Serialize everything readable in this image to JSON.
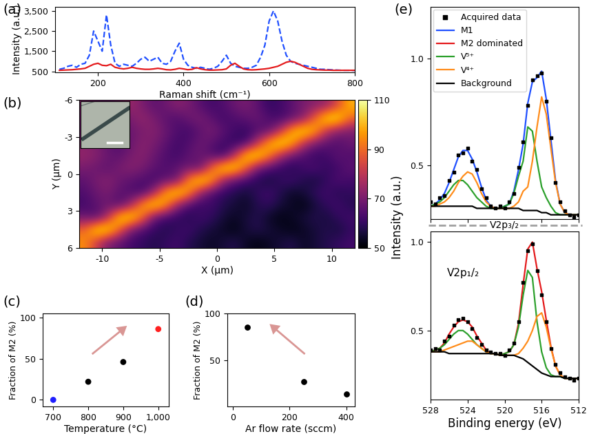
{
  "chart_data": [
    {
      "type": "line",
      "title": "(a)",
      "xlabel": "Raman shift (cm⁻¹)",
      "ylabel": "Intensity (a.u.)",
      "xlim": [
        100,
        800
      ],
      "xticks": [
        200,
        400,
        600,
        800
      ],
      "ylim": [
        450,
        3700
      ],
      "yticks": [
        500,
        {
          "value": 1500,
          "label": "1,500"
        },
        {
          "value": 2500,
          "label": "2,500"
        },
        {
          "value": 3500,
          "label": "3,500"
        }
      ],
      "x": [
        110,
        120,
        130,
        140,
        150,
        160,
        170,
        180,
        190,
        200,
        210,
        220,
        230,
        240,
        250,
        260,
        270,
        280,
        290,
        300,
        310,
        320,
        330,
        340,
        350,
        360,
        370,
        380,
        390,
        400,
        410,
        420,
        430,
        440,
        450,
        460,
        470,
        480,
        490,
        500,
        510,
        520,
        530,
        540,
        550,
        560,
        570,
        580,
        590,
        600,
        610,
        620,
        630,
        640,
        650,
        660,
        670,
        680,
        690,
        700,
        710,
        720,
        730,
        740,
        750,
        760,
        770,
        780,
        790,
        800
      ],
      "series": [
        {
          "color": "#1f4fff",
          "line_style": "dashed",
          "values": [
            600,
            650,
            750,
            800,
            700,
            850,
            900,
            1300,
            2500,
            2000,
            1500,
            3300,
            1800,
            900,
            750,
            850,
            800,
            750,
            900,
            1100,
            1200,
            1000,
            1100,
            1200,
            900,
            850,
            1000,
            1500,
            1900,
            1100,
            800,
            700,
            650,
            700,
            650,
            600,
            650,
            750,
            1000,
            1300,
            900,
            750,
            700,
            650,
            650,
            700,
            800,
            1200,
            1800,
            3000,
            3500,
            3000,
            2000,
            1300,
            1000,
            900,
            850,
            800,
            750,
            700,
            650,
            600,
            600,
            580,
            570,
            560,
            550,
            550,
            550,
            540
          ]
        },
        {
          "color": "#e41a1c",
          "line_style": "solid",
          "values": [
            550,
            560,
            570,
            580,
            600,
            620,
            650,
            750,
            850,
            900,
            800,
            780,
            850,
            700,
            650,
            620,
            650,
            700,
            650,
            620,
            600,
            600,
            620,
            650,
            620,
            580,
            570,
            600,
            650,
            620,
            580,
            600,
            680,
            620,
            580,
            560,
            560,
            570,
            580,
            620,
            800,
            900,
            750,
            620,
            580,
            570,
            580,
            600,
            620,
            650,
            700,
            750,
            850,
            950,
            1000,
            950,
            850,
            750,
            650,
            600,
            580,
            570,
            560,
            560,
            550,
            550,
            550,
            550,
            550,
            550
          ]
        }
      ]
    },
    {
      "type": "heatmap",
      "title": "(b)",
      "xlabel": "X (μm)",
      "ylabel": "Y (μm)",
      "xlim": [
        -12,
        12
      ],
      "xticks": [
        -10,
        -5,
        0,
        5,
        10
      ],
      "ylim": [
        6,
        -6
      ],
      "yticks": [
        -6,
        -3,
        0,
        3,
        6
      ],
      "color_range": [
        50,
        110
      ],
      "color_ticks": [
        50,
        70,
        90,
        110
      ],
      "cells": [
        [
          72,
          70,
          68,
          72,
          75,
          70,
          66,
          68,
          72,
          70,
          65,
          62,
          64,
          68,
          70,
          66,
          60,
          62,
          66,
          70,
          72,
          74,
          85,
          100
        ],
        [
          70,
          74,
          72,
          68,
          70,
          74,
          70,
          66,
          64,
          68,
          70,
          66,
          62,
          64,
          66,
          68,
          64,
          62,
          66,
          72,
          90,
          108,
          108,
          90
        ],
        [
          68,
          72,
          70,
          66,
          68,
          70,
          72,
          68,
          64,
          62,
          66,
          70,
          66,
          62,
          60,
          64,
          66,
          80,
          100,
          108,
          100,
          80,
          72,
          70
        ],
        [
          72,
          70,
          66,
          64,
          68,
          72,
          70,
          66,
          62,
          64,
          68,
          66,
          62,
          60,
          62,
          80,
          100,
          108,
          100,
          80,
          70,
          66,
          64,
          68
        ],
        [
          74,
          72,
          68,
          66,
          70,
          72,
          68,
          64,
          62,
          66,
          68,
          64,
          60,
          78,
          105,
          108,
          95,
          78,
          68,
          64,
          60,
          62,
          66,
          64
        ],
        [
          70,
          68,
          66,
          70,
          72,
          70,
          66,
          64,
          66,
          68,
          66,
          90,
          108,
          108,
          90,
          70,
          64,
          60,
          58,
          62,
          64,
          60,
          62,
          66
        ],
        [
          66,
          70,
          72,
          68,
          66,
          64,
          62,
          66,
          68,
          95,
          108,
          100,
          75,
          66,
          62,
          58,
          56,
          60,
          62,
          58,
          56,
          60,
          64,
          62
        ],
        [
          64,
          68,
          70,
          66,
          64,
          62,
          75,
          98,
          108,
          98,
          75,
          64,
          60,
          58,
          56,
          60,
          62,
          58,
          54,
          56,
          60,
          62,
          58,
          60
        ],
        [
          62,
          66,
          68,
          64,
          75,
          98,
          108,
          98,
          75,
          64,
          60,
          62,
          58,
          56,
          54,
          58,
          60,
          56,
          54,
          52,
          56,
          60,
          62,
          58
        ],
        [
          68,
          64,
          78,
          105,
          108,
          92,
          68,
          62,
          60,
          58,
          62,
          60,
          56,
          54,
          56,
          58,
          54,
          52,
          54,
          56,
          58,
          56,
          60,
          62
        ],
        [
          90,
          108,
          108,
          90,
          70,
          64,
          60,
          58,
          60,
          62,
          58,
          56,
          54,
          52,
          56,
          58,
          56,
          54,
          52,
          54,
          56,
          58,
          56,
          60
        ],
        [
          95,
          82,
          70,
          66,
          62,
          60,
          58,
          60,
          62,
          58,
          56,
          54,
          56,
          58,
          54,
          52,
          54,
          56,
          58,
          54,
          56,
          58,
          60,
          62
        ]
      ]
    },
    {
      "type": "scatter",
      "title": "(c)",
      "xlabel": "Temperature (°C)",
      "ylabel": "Fraction of M2 (%)",
      "xlim": [
        670,
        1030
      ],
      "xticks": [
        700,
        800,
        900,
        {
          "value": 1000,
          "label": "1,000"
        }
      ],
      "ylim": [
        -8,
        105
      ],
      "yticks": [
        0,
        50,
        100
      ],
      "x": [
        700,
        800,
        900,
        1000
      ],
      "values": [
        0,
        22,
        46,
        86
      ],
      "colors": [
        "#1f1fff",
        "#000000",
        "#000000",
        "#ff2020"
      ],
      "marker": "circle"
    },
    {
      "type": "scatter",
      "title": "(d)",
      "xlabel": "Ar flow rate (sccm)",
      "ylabel": "Fraction of M2 (%)",
      "xlim": [
        -20,
        430
      ],
      "xticks": [
        0,
        200,
        400
      ],
      "ylim": [
        0,
        100
      ],
      "yticks": [
        50,
        100
      ],
      "x": [
        50,
        250,
        400
      ],
      "values": [
        85,
        27,
        13
      ],
      "color": "#000000",
      "marker": "circle"
    },
    {
      "type": "line",
      "title": "(e)",
      "annotation": "V2p₃/₂",
      "legend": "upper left",
      "tick_labels": "y",
      "xlim": [
        528,
        512
      ],
      "xticks": [
        528,
        524,
        520,
        516,
        512
      ],
      "ylim": [
        0.25,
        1.24
      ],
      "yticks": [
        0.5,
        1.0
      ],
      "x": [
        528,
        527.5,
        527,
        526.5,
        526,
        525.5,
        525,
        524.5,
        524,
        523.5,
        523,
        522.5,
        522,
        521.5,
        521,
        520.5,
        520,
        519.5,
        519,
        518.5,
        518,
        517.5,
        517,
        516.5,
        516,
        515.5,
        515,
        514.5,
        514,
        513.5,
        513,
        512.5,
        512
      ],
      "series": [
        {
          "name": "Acquired data",
          "type": "scatter",
          "marker": "square",
          "color": "#000000",
          "values": [
            0.33,
            0.32,
            0.35,
            0.36,
            0.43,
            0.47,
            0.55,
            0.56,
            0.58,
            0.52,
            0.48,
            0.39,
            0.35,
            0.31,
            0.3,
            0.31,
            0.3,
            0.33,
            0.37,
            0.49,
            0.61,
            0.78,
            0.9,
            0.92,
            0.93,
            0.8,
            0.63,
            0.42,
            0.33,
            0.29,
            0.27,
            0.26,
            0.27
          ]
        },
        {
          "name": "M1",
          "type": "line",
          "line_style": "solid",
          "color": "#1f4fff",
          "values": [
            0.31,
            0.32,
            0.34,
            0.37,
            0.42,
            0.48,
            0.54,
            0.57,
            0.57,
            0.53,
            0.47,
            0.4,
            0.34,
            0.31,
            0.3,
            0.3,
            0.31,
            0.32,
            0.38,
            0.48,
            0.6,
            0.79,
            0.89,
            0.91,
            0.94,
            0.81,
            0.62,
            0.43,
            0.32,
            0.28,
            0.27,
            0.27,
            0.27
          ]
        },
        {
          "name": "V⁵⁺",
          "type": "line",
          "line_style": "solid",
          "color": "#2ca02c",
          "values": [
            0.31,
            0.32,
            0.33,
            0.35,
            0.38,
            0.41,
            0.43,
            0.43,
            0.41,
            0.38,
            0.35,
            0.33,
            0.31,
            0.3,
            0.3,
            0.3,
            0.31,
            0.32,
            0.37,
            0.45,
            0.52,
            0.68,
            0.66,
            0.52,
            0.4,
            0.35,
            0.31,
            0.28,
            0.27,
            0.27,
            0.27,
            0.27,
            0.27
          ]
        },
        {
          "name": "V⁴⁺",
          "type": "line",
          "line_style": "solid",
          "color": "#ff8c1a",
          "values": [
            0.31,
            0.31,
            0.32,
            0.33,
            0.35,
            0.38,
            0.42,
            0.45,
            0.47,
            0.46,
            0.42,
            0.37,
            0.33,
            0.31,
            0.3,
            0.3,
            0.3,
            0.3,
            0.31,
            0.33,
            0.38,
            0.4,
            0.52,
            0.68,
            0.82,
            0.74,
            0.58,
            0.42,
            0.32,
            0.28,
            0.27,
            0.27,
            0.27
          ]
        },
        {
          "name": "Background",
          "type": "line",
          "line_style": "solid",
          "color": "#000000",
          "values": [
            0.31,
            0.31,
            0.31,
            0.31,
            0.31,
            0.31,
            0.31,
            0.31,
            0.31,
            0.31,
            0.3,
            0.3,
            0.3,
            0.3,
            0.3,
            0.3,
            0.3,
            0.3,
            0.3,
            0.3,
            0.29,
            0.29,
            0.29,
            0.29,
            0.28,
            0.28,
            0.27,
            0.27,
            0.27,
            0.27,
            0.27,
            0.27,
            0.27
          ]
        }
      ]
    },
    {
      "type": "line",
      "annotation": "V2p₁/₂",
      "xlabel": "Binding energy (eV)",
      "ylabel": "Intensity (a.u.)",
      "xlim": [
        528,
        512
      ],
      "xticks": [
        528,
        524,
        520,
        516,
        512
      ],
      "ylim": [
        0.11,
        1.06
      ],
      "yticks": [
        0.5,
        1.0
      ],
      "x": [
        528,
        527.5,
        527,
        526.5,
        526,
        525.5,
        525,
        524.5,
        524,
        523.5,
        523,
        522.5,
        522,
        521.5,
        521,
        520.5,
        520,
        519.5,
        519,
        518.5,
        518,
        517.5,
        517,
        516.5,
        516,
        515.5,
        515,
        514.5,
        514,
        513.5,
        513,
        512.5,
        512
      ],
      "series": [
        {
          "name": "Acquired data",
          "type": "scatter",
          "marker": "square",
          "color": "#000000",
          "values": [
            0.39,
            0.4,
            0.39,
            0.44,
            0.47,
            0.53,
            0.56,
            0.57,
            0.55,
            0.51,
            0.46,
            0.42,
            0.39,
            0.38,
            0.37,
            0.37,
            0.36,
            0.39,
            0.43,
            0.55,
            0.77,
            0.95,
            0.99,
            0.84,
            0.7,
            0.55,
            0.4,
            0.31,
            0.26,
            0.24,
            0.23,
            0.22,
            0.23
          ]
        },
        {
          "name": "M2 dominated",
          "type": "line",
          "line_style": "solid",
          "color": "#e41a1c",
          "values": [
            0.38,
            0.39,
            0.4,
            0.43,
            0.48,
            0.52,
            0.55,
            0.56,
            0.55,
            0.52,
            0.47,
            0.43,
            0.39,
            0.37,
            0.37,
            0.36,
            0.37,
            0.38,
            0.42,
            0.54,
            0.76,
            0.96,
            1.0,
            0.85,
            0.72,
            0.56,
            0.41,
            0.3,
            0.25,
            0.23,
            0.23,
            0.23,
            0.23
          ]
        },
        {
          "name": "V⁵⁺",
          "type": "line",
          "line_style": "solid",
          "color": "#2ca02c",
          "values": [
            0.38,
            0.39,
            0.4,
            0.42,
            0.45,
            0.48,
            0.5,
            0.5,
            0.48,
            0.45,
            0.42,
            0.4,
            0.38,
            0.37,
            0.37,
            0.36,
            0.37,
            0.38,
            0.42,
            0.52,
            0.7,
            0.84,
            0.8,
            0.55,
            0.38,
            0.29,
            0.25,
            0.24,
            0.24,
            0.23,
            0.23,
            0.23,
            0.23
          ]
        },
        {
          "name": "V⁴⁺",
          "type": "line",
          "line_style": "solid",
          "color": "#ff8c1a",
          "values": [
            0.38,
            0.38,
            0.38,
            0.39,
            0.4,
            0.41,
            0.42,
            0.43,
            0.44,
            0.44,
            0.42,
            0.4,
            0.38,
            0.37,
            0.37,
            0.36,
            0.36,
            0.36,
            0.36,
            0.37,
            0.4,
            0.44,
            0.5,
            0.58,
            0.6,
            0.52,
            0.4,
            0.3,
            0.25,
            0.23,
            0.23,
            0.23,
            0.23
          ]
        },
        {
          "name": "Background",
          "type": "line",
          "line_style": "solid",
          "color": "#000000",
          "values": [
            0.38,
            0.38,
            0.38,
            0.38,
            0.37,
            0.37,
            0.37,
            0.37,
            0.37,
            0.37,
            0.37,
            0.37,
            0.37,
            0.37,
            0.37,
            0.36,
            0.36,
            0.36,
            0.36,
            0.35,
            0.34,
            0.32,
            0.3,
            0.28,
            0.26,
            0.25,
            0.24,
            0.24,
            0.24,
            0.23,
            0.23,
            0.23,
            0.23
          ]
        }
      ]
    }
  ]
}
